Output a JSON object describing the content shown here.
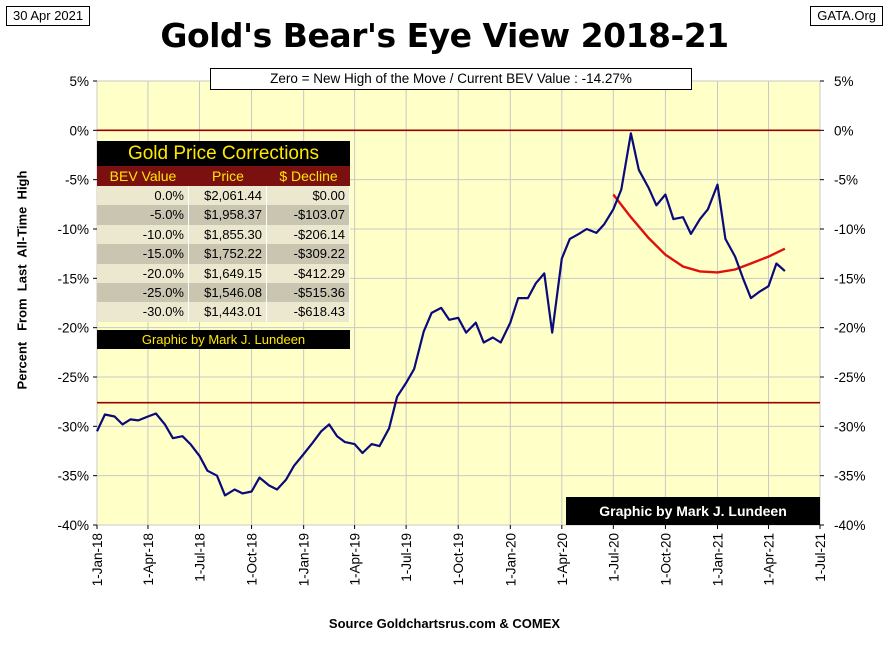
{
  "header": {
    "date": "30 Apr 2021",
    "site": "GATA.Org",
    "title": "Gold's Bear's Eye View 2018-21",
    "subtitle": "Zero = New High of the Move / Current  BEV Value : -14.27%"
  },
  "corrections_table": {
    "title": "Gold Price Corrections",
    "headers": [
      "BEV Value",
      "Price",
      "$ Decline"
    ],
    "rows": [
      [
        "0.0%",
        "$2,061.44",
        "$0.00"
      ],
      [
        "-5.0%",
        "$1,958.37",
        "-$103.07"
      ],
      [
        "-10.0%",
        "$1,855.30",
        "-$206.14"
      ],
      [
        "-15.0%",
        "$1,752.22",
        "-$309.22"
      ],
      [
        "-20.0%",
        "$1,649.15",
        "-$412.29"
      ],
      [
        "-25.0%",
        "$1,546.08",
        "-$515.36"
      ],
      [
        "-30.0%",
        "$1,443.01",
        "-$618.43"
      ]
    ],
    "credit": "Graphic by Mark J. Lundeen"
  },
  "credit_box": "Graphic by Mark J. Lundeen",
  "source": "Source Goldchartsrus.com  & COMEX",
  "colors": {
    "plot_bg": "#ffffc8",
    "series": "#0a0a7a",
    "reference_line": "#9b0000",
    "trend": "#e01010",
    "grid": "#c8c8c8"
  },
  "chart_data": {
    "type": "line",
    "ylabel": "Percent   From  Last  All-Time  High",
    "xlabel": "",
    "title": "Gold's Bear's Eye View 2018-21",
    "ylim": [
      -40,
      5
    ],
    "yticks": [
      5,
      0,
      -5,
      -10,
      -15,
      -20,
      -25,
      -30,
      -35,
      -40
    ],
    "ytick_labels": [
      "5%",
      "0%",
      "-5%",
      "-10%",
      "-15%",
      "-20%",
      "-25%",
      "-30%",
      "-35%",
      "-40%"
    ],
    "x_categories": [
      "1-Jan-18",
      "1-Apr-18",
      "1-Jul-18",
      "1-Oct-18",
      "1-Jan-19",
      "1-Apr-19",
      "1-Jul-19",
      "1-Oct-19",
      "1-Jan-20",
      "1-Apr-20",
      "1-Jul-20",
      "1-Oct-20",
      "1-Jan-21",
      "1-Apr-21",
      "1-Jul-21"
    ],
    "grid": true,
    "reference_lines": [
      0,
      -27.6
    ],
    "series": [
      {
        "name": "BEV",
        "x": [
          "1-Jan-18",
          "15-Jan-18",
          "1-Feb-18",
          "15-Feb-18",
          "1-Mar-18",
          "15-Mar-18",
          "1-Apr-18",
          "15-Apr-18",
          "1-May-18",
          "15-May-18",
          "1-Jun-18",
          "15-Jun-18",
          "1-Jul-18",
          "15-Jul-18",
          "1-Aug-18",
          "15-Aug-18",
          "1-Sep-18",
          "15-Sep-18",
          "1-Oct-18",
          "15-Oct-18",
          "1-Nov-18",
          "15-Nov-18",
          "1-Dec-18",
          "15-Dec-18",
          "1-Jan-19",
          "15-Jan-19",
          "1-Feb-19",
          "15-Feb-19",
          "1-Mar-19",
          "15-Mar-19",
          "1-Apr-19",
          "15-Apr-19",
          "1-May-19",
          "15-May-19",
          "1-Jun-19",
          "15-Jun-19",
          "1-Jul-19",
          "15-Jul-19",
          "1-Aug-19",
          "15-Aug-19",
          "1-Sep-19",
          "15-Sep-19",
          "1-Oct-19",
          "15-Oct-19",
          "1-Nov-19",
          "15-Nov-19",
          "1-Dec-19",
          "15-Dec-19",
          "1-Jan-20",
          "15-Jan-20",
          "1-Feb-20",
          "15-Feb-20",
          "1-Mar-20",
          "15-Mar-20",
          "1-Apr-20",
          "15-Apr-20",
          "1-May-20",
          "15-May-20",
          "1-Jun-20",
          "15-Jun-20",
          "1-Jul-20",
          "15-Jul-20",
          "1-Aug-20",
          "15-Aug-20",
          "1-Sep-20",
          "15-Sep-20",
          "1-Oct-20",
          "15-Oct-20",
          "1-Nov-20",
          "15-Nov-20",
          "1-Dec-20",
          "15-Dec-20",
          "1-Jan-21",
          "15-Jan-21",
          "1-Feb-21",
          "15-Feb-21",
          "1-Mar-21",
          "15-Mar-21",
          "1-Apr-21",
          "15-Apr-21",
          "30-Apr-21"
        ],
        "values": [
          -30.5,
          -28.8,
          -29.0,
          -29.8,
          -29.3,
          -29.4,
          -29.0,
          -28.7,
          -29.8,
          -31.2,
          -31.0,
          -31.8,
          -33.0,
          -34.5,
          -35.0,
          -37.0,
          -36.4,
          -36.8,
          -36.6,
          -35.2,
          -36.0,
          -36.4,
          -35.4,
          -34.0,
          -32.8,
          -31.8,
          -30.5,
          -29.8,
          -31.0,
          -31.6,
          -31.8,
          -32.7,
          -31.8,
          -32.0,
          -30.2,
          -27.0,
          -25.6,
          -24.2,
          -20.4,
          -18.5,
          -18.0,
          -19.2,
          -19.0,
          -20.5,
          -19.5,
          -21.5,
          -21.0,
          -21.5,
          -19.5,
          -17.0,
          -17.0,
          -15.5,
          -14.5,
          -20.5,
          -13.0,
          -11.0,
          -10.5,
          -10.0,
          -10.4,
          -9.5,
          -8.0,
          -6.0,
          -0.3,
          -4.0,
          -5.8,
          -7.6,
          -6.5,
          -9.0,
          -8.8,
          -10.5,
          -9.0,
          -8.0,
          -5.5,
          -11.0,
          -12.8,
          -15.0,
          -17.0,
          -16.4,
          -15.8,
          -13.5,
          -14.27
        ]
      },
      {
        "name": "trend",
        "x": [
          "1-Jul-20",
          "1-Aug-20",
          "1-Sep-20",
          "1-Oct-20",
          "1-Nov-20",
          "1-Dec-20",
          "1-Jan-21",
          "1-Feb-21",
          "1-Mar-21",
          "1-Apr-21",
          "30-Apr-21"
        ],
        "values": [
          -6.5,
          -8.8,
          -10.9,
          -12.6,
          -13.8,
          -14.3,
          -14.4,
          -14.1,
          -13.5,
          -12.8,
          -12.0
        ]
      }
    ]
  }
}
